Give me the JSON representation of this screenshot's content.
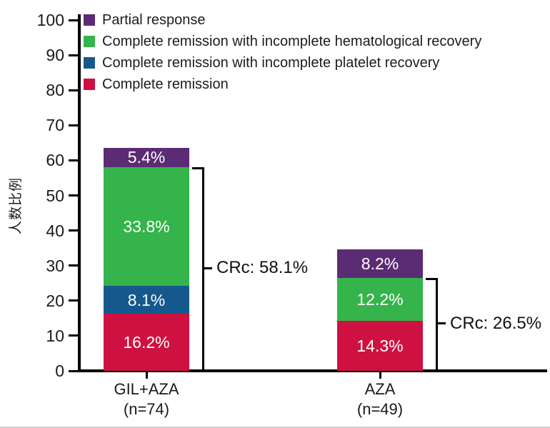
{
  "chart_data": {
    "type": "bar",
    "stacked": true,
    "title": "",
    "ylabel": "人数比例",
    "xlabel": "",
    "ylim": [
      0,
      100
    ],
    "yticks": [
      0,
      10,
      20,
      30,
      40,
      50,
      60,
      70,
      80,
      90,
      100
    ],
    "grid": false,
    "legend_position": "top-left",
    "axis_color": "#000000",
    "tick_label_color": "#1a1a1a",
    "value_label_color": "#ffffff",
    "categories": [
      {
        "label": "GIL+AZA",
        "sublabel": "(n=74)"
      },
      {
        "label": "AZA",
        "sublabel": "(n=49)"
      }
    ],
    "series": [
      {
        "name": "Complete remission",
        "color": "#ce1141",
        "values": [
          16.2,
          14.3
        ],
        "labels": [
          "16.2%",
          "14.3%"
        ]
      },
      {
        "name": "Complete remission with incomplete platelet recovery",
        "color": "#15598c",
        "values": [
          8.1,
          0
        ],
        "labels": [
          "8.1%",
          ""
        ]
      },
      {
        "name": "Complete remission with incomplete hematological recovery",
        "color": "#35b44b",
        "values": [
          33.8,
          12.2
        ],
        "labels": [
          "33.8%",
          "12.2%"
        ]
      },
      {
        "name": "Partial response",
        "color": "#5b2b73",
        "values": [
          5.4,
          8.2
        ],
        "labels": [
          "5.4%",
          "8.2%"
        ]
      }
    ],
    "bar_totals": [
      63.5,
      34.7
    ],
    "legend": [
      "Partial response",
      "Complete remission with incomplete hematological recovery",
      "Complete remission with incomplete platelet recovery",
      "Complete remission"
    ],
    "annotations": [
      {
        "bar": 0,
        "from": 0,
        "to": 58.1,
        "label": "CRc: 58.1%"
      },
      {
        "bar": 1,
        "from": 0,
        "to": 26.5,
        "label": "CRc: 26.5%"
      }
    ]
  }
}
